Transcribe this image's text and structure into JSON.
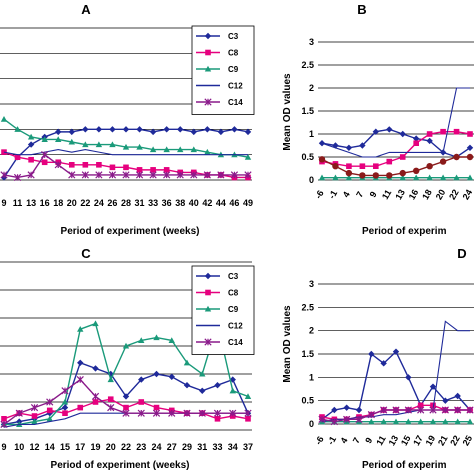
{
  "figure": {
    "panel_letters": [
      "A",
      "B",
      "C",
      "D"
    ]
  },
  "chart_data": [
    {
      "panel": "A",
      "type": "line",
      "xlabel": "Period of experiment (weeks)",
      "ylabel": "",
      "categories": [
        "9",
        "11",
        "13",
        "16",
        "18",
        "20",
        "22",
        "24",
        "26",
        "28",
        "31",
        "33",
        "36",
        "38",
        "40",
        "42",
        "44",
        "46",
        "49"
      ],
      "x_tick_labels": [
        "9",
        "11",
        "13",
        "16",
        "18",
        "20",
        "22",
        "24",
        "26",
        "28",
        "31",
        "33",
        "36",
        "38",
        "40",
        "42",
        "44",
        "46",
        "49"
      ],
      "ylim": [
        0,
        3
      ],
      "grid": true,
      "legend": "top-right",
      "series": [
        {
          "name": "C3",
          "color": "#1f2a9a",
          "marker": "diamond",
          "values": [
            0.05,
            0.45,
            0.7,
            0.85,
            0.95,
            0.95,
            1.0,
            1.0,
            1.0,
            1.0,
            1.0,
            0.95,
            1.0,
            1.0,
            0.95,
            1.0,
            0.95,
            1.0,
            0.95
          ]
        },
        {
          "name": "C8",
          "color": "#e6007e",
          "marker": "square",
          "values": [
            0.55,
            0.45,
            0.4,
            0.35,
            0.35,
            0.3,
            0.3,
            0.3,
            0.25,
            0.25,
            0.2,
            0.2,
            0.2,
            0.15,
            0.15,
            0.1,
            0.1,
            0.05,
            0.05
          ]
        },
        {
          "name": "C9",
          "color": "#1a9a7a",
          "marker": "triangle",
          "values": [
            1.2,
            1.0,
            0.85,
            0.8,
            0.8,
            0.75,
            0.7,
            0.7,
            0.7,
            0.65,
            0.65,
            0.6,
            0.6,
            0.6,
            0.6,
            0.55,
            0.5,
            0.5,
            0.45
          ]
        },
        {
          "name": "C12",
          "color": "#1f2a9a",
          "marker": "none",
          "values": [
            0.55,
            0.5,
            0.5,
            0.55,
            0.6,
            0.55,
            0.6,
            0.55,
            0.5,
            0.5,
            0.5,
            0.5,
            0.5,
            0.5,
            0.5,
            0.5,
            0.5,
            0.5,
            0.5
          ]
        },
        {
          "name": "C14",
          "color": "#8a1a8a",
          "marker": "x",
          "values": [
            0.1,
            0.05,
            0.1,
            0.5,
            0.3,
            0.1,
            0.1,
            0.1,
            0.1,
            0.1,
            0.1,
            0.1,
            0.1,
            0.1,
            0.1,
            0.1,
            0.1,
            0.1,
            0.1
          ]
        }
      ]
    },
    {
      "panel": "B",
      "type": "line",
      "xlabel": "Period of experim",
      "ylabel": "Mean OD values",
      "categories": [
        "-6",
        "-1",
        "4",
        "7",
        "9",
        "11",
        "13",
        "16",
        "18",
        "20",
        "22",
        "24"
      ],
      "x_tick_labels": [
        "-6",
        "-1",
        "4",
        "7",
        "9",
        "11",
        "13",
        "16",
        "18",
        "20",
        "22",
        "24"
      ],
      "y_tick_labels": [
        "0",
        "0.5",
        "1",
        "1.5",
        "2",
        "2.5",
        "3"
      ],
      "ylim": [
        0,
        3
      ],
      "grid": true,
      "series": [
        {
          "color": "#1f2a9a",
          "marker": "diamond",
          "values": [
            0.8,
            0.75,
            0.7,
            0.75,
            1.05,
            1.1,
            1.0,
            0.9,
            0.85,
            0.6,
            0.5,
            0.7
          ]
        },
        {
          "color": "#e6007e",
          "marker": "square",
          "values": [
            0.4,
            0.35,
            0.3,
            0.3,
            0.3,
            0.4,
            0.5,
            0.8,
            1.0,
            1.05,
            1.05,
            1.0
          ]
        },
        {
          "color": "#1a9a7a",
          "marker": "triangle",
          "values": [
            0.05,
            0.05,
            0.05,
            0.05,
            0.05,
            0.05,
            0.05,
            0.05,
            0.05,
            0.05,
            0.05,
            0.05
          ]
        },
        {
          "color": "#1f2a9a",
          "marker": "none",
          "values": [
            0.8,
            0.7,
            0.6,
            0.5,
            0.5,
            0.6,
            0.6,
            0.6,
            0.6,
            0.6,
            2.0,
            2.0
          ]
        },
        {
          "color": "#8a1a1a",
          "marker": "circle",
          "values": [
            0.45,
            0.3,
            0.15,
            0.1,
            0.1,
            0.1,
            0.15,
            0.2,
            0.3,
            0.4,
            0.5,
            0.5
          ]
        }
      ]
    },
    {
      "panel": "C",
      "type": "line",
      "xlabel": "Period of experiment (weeks)",
      "ylabel": "",
      "categories": [
        "9",
        "10",
        "12",
        "14",
        "15",
        "17",
        "19",
        "20",
        "22",
        "23",
        "24",
        "27",
        "29",
        "31",
        "33",
        "34",
        "37"
      ],
      "x_tick_labels": [
        "9",
        "10",
        "12",
        "14",
        "15",
        "17",
        "19",
        "20",
        "22",
        "23",
        "24",
        "27",
        "29",
        "31",
        "33",
        "34",
        "37"
      ],
      "ylim": [
        0,
        3
      ],
      "grid": true,
      "legend": "top-right",
      "series": [
        {
          "name": "C3",
          "color": "#1f2a9a",
          "marker": "diamond",
          "values": [
            0.1,
            0.15,
            0.2,
            0.3,
            0.4,
            1.2,
            1.1,
            1.0,
            0.6,
            0.9,
            1.0,
            0.95,
            0.8,
            0.7,
            0.8,
            0.9,
            0.3
          ]
        },
        {
          "name": "C8",
          "color": "#e6007e",
          "marker": "square",
          "values": [
            0.2,
            0.3,
            0.25,
            0.35,
            0.3,
            0.4,
            0.5,
            0.55,
            0.4,
            0.5,
            0.4,
            0.35,
            0.3,
            0.3,
            0.2,
            0.25,
            0.2
          ]
        },
        {
          "name": "C9",
          "color": "#1a9a7a",
          "marker": "triangle",
          "values": [
            0.1,
            0.1,
            0.15,
            0.2,
            0.5,
            1.8,
            1.9,
            0.9,
            1.5,
            1.6,
            1.65,
            1.6,
            1.2,
            1.0,
            1.9,
            0.7,
            0.6
          ]
        },
        {
          "name": "C12",
          "color": "#1f2a9a",
          "marker": "none",
          "values": [
            0.05,
            0.1,
            0.1,
            0.15,
            0.2,
            0.3,
            0.3,
            0.3,
            0.3,
            0.3,
            0.3,
            0.3,
            0.3,
            0.3,
            0.3,
            0.3,
            0.3
          ]
        },
        {
          "name": "C14",
          "color": "#8a1a8a",
          "marker": "x",
          "values": [
            0.1,
            0.3,
            0.4,
            0.5,
            0.7,
            0.9,
            0.6,
            0.4,
            0.3,
            0.3,
            0.3,
            0.3,
            0.3,
            0.3,
            0.3,
            0.3,
            0.3
          ]
        }
      ]
    },
    {
      "panel": "D",
      "type": "line",
      "xlabel": "Period of experim",
      "ylabel": "Mean OD values",
      "categories": [
        "-6",
        "-1",
        "4",
        "7",
        "9",
        "11",
        "13",
        "15",
        "17",
        "19",
        "21",
        "22",
        "25"
      ],
      "x_tick_labels": [
        "-6",
        "-1",
        "4",
        "7",
        "9",
        "11",
        "13",
        "15",
        "17",
        "19",
        "21",
        "22",
        "25"
      ],
      "y_tick_labels": [
        "0",
        "0.5",
        "1",
        "1.5",
        "2",
        "2.5",
        "3"
      ],
      "ylim": [
        0,
        3
      ],
      "grid": true,
      "series": [
        {
          "color": "#1f2a9a",
          "marker": "diamond",
          "values": [
            0.1,
            0.3,
            0.35,
            0.3,
            1.5,
            1.3,
            1.55,
            1.0,
            0.4,
            0.8,
            0.5,
            0.6,
            0.3
          ]
        },
        {
          "color": "#e6007e",
          "marker": "square",
          "values": [
            0.15,
            0.1,
            0.1,
            0.15,
            0.2,
            0.3,
            0.3,
            0.3,
            0.4,
            0.4,
            0.3,
            0.3,
            0.3
          ]
        },
        {
          "color": "#1a9a7a",
          "marker": "triangle",
          "values": [
            0.05,
            0.05,
            0.05,
            0.05,
            0.05,
            0.05,
            0.05,
            0.05,
            0.05,
            0.05,
            0.05,
            0.05,
            0.05
          ]
        },
        {
          "color": "#1f2a9a",
          "marker": "none",
          "values": [
            0.05,
            0.1,
            0.1,
            0.15,
            0.15,
            0.2,
            0.2,
            0.25,
            0.3,
            0.3,
            2.2,
            2.0,
            2.0
          ]
        },
        {
          "color": "#8a1a8a",
          "marker": "x",
          "values": [
            0.1,
            0.05,
            0.1,
            0.1,
            0.2,
            0.3,
            0.3,
            0.3,
            0.3,
            0.3,
            0.3,
            0.3,
            0.3
          ]
        }
      ]
    }
  ]
}
